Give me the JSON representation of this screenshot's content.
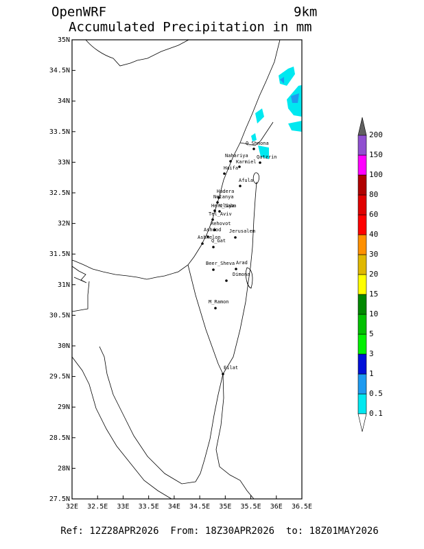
{
  "header": {
    "title": "OpenWRF",
    "resolution": "9km",
    "subtitle": "Accumulated Precipitation in mm"
  },
  "map": {
    "xlim": [
      32,
      36.5
    ],
    "ylim": [
      27.5,
      35
    ],
    "xticks": [
      {
        "value": 32,
        "label": "32E"
      },
      {
        "value": 32.5,
        "label": "32.5E"
      },
      {
        "value": 33,
        "label": "33E"
      },
      {
        "value": 33.5,
        "label": "33.5E"
      },
      {
        "value": 34,
        "label": "34E"
      },
      {
        "value": 34.5,
        "label": "34.5E"
      },
      {
        "value": 35,
        "label": "35E"
      },
      {
        "value": 35.5,
        "label": "35.5E"
      },
      {
        "value": 36,
        "label": "36E"
      },
      {
        "value": 36.5,
        "label": "36.5E"
      }
    ],
    "yticks": [
      {
        "value": 27.5,
        "label": "27.5N"
      },
      {
        "value": 28,
        "label": "28N"
      },
      {
        "value": 28.5,
        "label": "28.5N"
      },
      {
        "value": 29,
        "label": "29N"
      },
      {
        "value": 29.5,
        "label": "29.5N"
      },
      {
        "value": 30,
        "label": "30N"
      },
      {
        "value": 30.5,
        "label": "30.5N"
      },
      {
        "value": 31,
        "label": "31N"
      },
      {
        "value": 31.5,
        "label": "31.5N"
      },
      {
        "value": 32,
        "label": "32N"
      },
      {
        "value": 32.5,
        "label": "32.5N"
      },
      {
        "value": 33,
        "label": "33N"
      },
      {
        "value": 33.5,
        "label": "33.5N"
      },
      {
        "value": 34,
        "label": "34N"
      },
      {
        "value": 34.5,
        "label": "34.5N"
      },
      {
        "value": 35,
        "label": "35N"
      }
    ],
    "cities": [
      "Q_Shmona",
      "Nahariya",
      "Qatzrin",
      "Karmiel",
      "Haifa",
      "Afula",
      "Hadera",
      "Netanya",
      "Herzliya",
      "K_Saba",
      "Tel_Aviv",
      "Rehovot",
      "Ashdod",
      "Ashkelon",
      "Q_Gat",
      "Jerusalem",
      "Beer_Sheva",
      "Arad",
      "Dimona",
      "M_Ramon",
      "Eilat"
    ]
  },
  "colorbar": {
    "levels": [
      0.1,
      0.5,
      1,
      3,
      5,
      10,
      15,
      20,
      30,
      40,
      60,
      80,
      100,
      150,
      200
    ],
    "colors": [
      "#00e8f0",
      "#1e9af0",
      "#0010d8",
      "#00f000",
      "#00c000",
      "#008800",
      "#ffff00",
      "#e0b800",
      "#ff9000",
      "#ff0000",
      "#e00000",
      "#b00000",
      "#ff00ff",
      "#9050d0"
    ],
    "over_color": "#606060"
  },
  "footer": "Ref: 12Z28APR2026  From: 18Z30APR2026  to: 18Z01MAY2026"
}
